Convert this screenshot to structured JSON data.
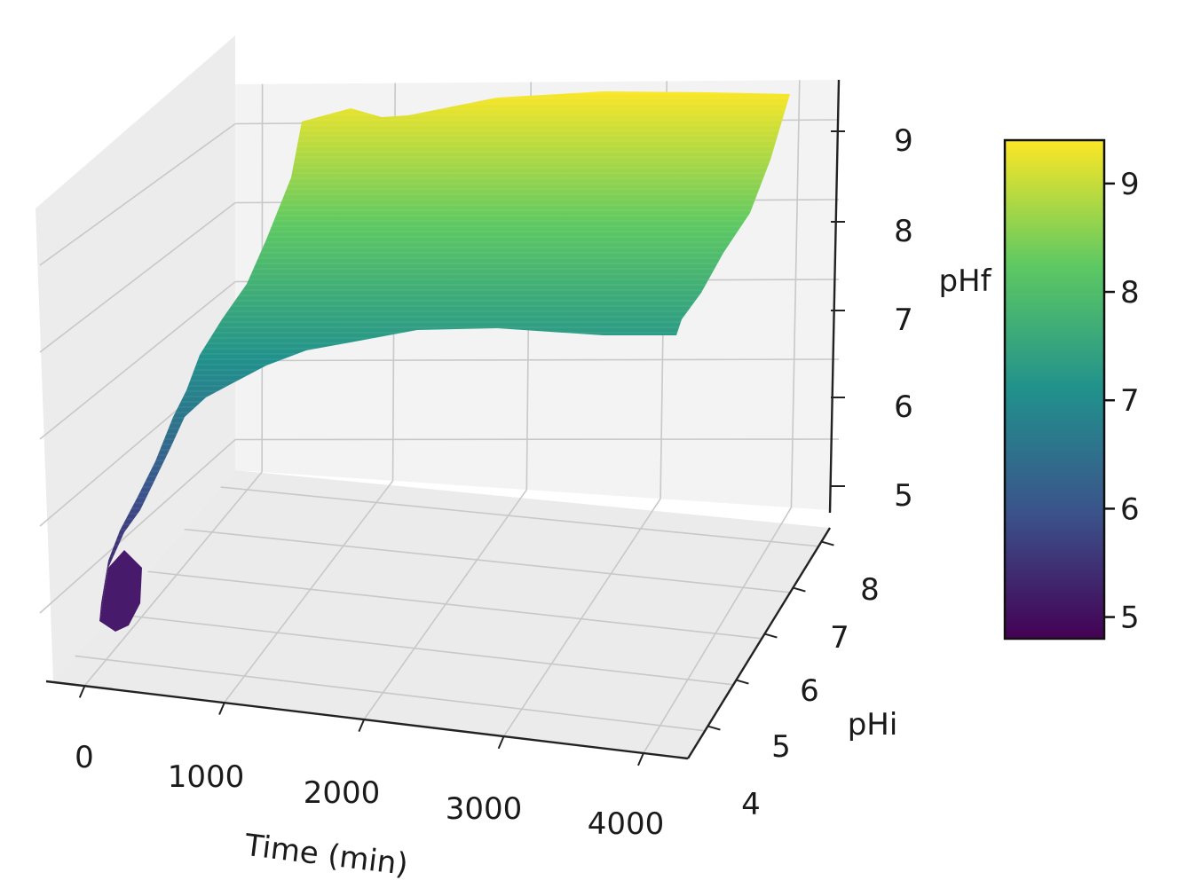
{
  "chart_data": {
    "type": "surface3d",
    "xlabel": "Time (min)",
    "ylabel": "pHi",
    "zlabel": "pHf",
    "x_ticks": [
      "0",
      "1000",
      "2000",
      "3000",
      "4000"
    ],
    "y_ticks": [
      "4",
      "5",
      "6",
      "7",
      "8"
    ],
    "z_ticks": [
      "5",
      "6",
      "7",
      "8",
      "9"
    ],
    "colorbar_ticks": [
      "5",
      "6",
      "7",
      "8",
      "9"
    ],
    "colormap": "viridis",
    "colormap_stops": [
      "#440154",
      "#3b528b",
      "#21918c",
      "#5ec962",
      "#fde725"
    ],
    "value_range": [
      4.8,
      9.4
    ],
    "surface_outline": {
      "near_edge_pHi_4": [
        {
          "time": 0,
          "pHf": 4.9
        },
        {
          "time": 150,
          "pHf": 5.6
        },
        {
          "time": 400,
          "pHf": 6.6
        },
        {
          "time": 800,
          "pHf": 7.0
        },
        {
          "time": 1500,
          "pHf": 7.2
        },
        {
          "time": 2500,
          "pHf": 7.2
        },
        {
          "time": 4000,
          "pHf": 7.2
        }
      ],
      "far_edge_pHi_8": [
        {
          "time": 0,
          "pHf": 5.0
        },
        {
          "time": 150,
          "pHf": 6.4
        },
        {
          "time": 400,
          "pHf": 8.4
        },
        {
          "time": 800,
          "pHf": 9.0
        },
        {
          "time": 1500,
          "pHf": 9.2
        },
        {
          "time": 2500,
          "pHf": 9.3
        },
        {
          "time": 4000,
          "pHf": 9.3
        }
      ]
    }
  }
}
